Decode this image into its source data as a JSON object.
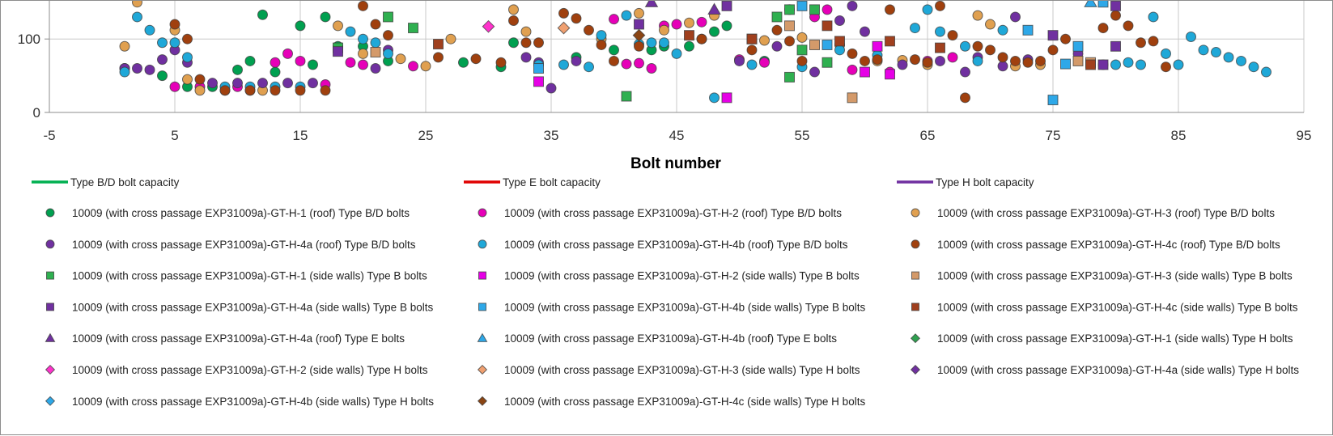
{
  "chart_data": {
    "type": "scatter",
    "title": "",
    "xlabel": "Bolt number",
    "ylabel": "",
    "xlim": [
      -5,
      95
    ],
    "x_ticks": [
      -5,
      5,
      15,
      25,
      35,
      45,
      55,
      65,
      75,
      85,
      95
    ],
    "y_ticks": [
      0,
      100
    ],
    "grid": true,
    "legend_position": "bottom",
    "lines": [
      {
        "name": "Type B/D bolt capacity",
        "color": "#00b050"
      },
      {
        "name": "Type E bolt capacity",
        "color": "#e00000"
      },
      {
        "name": "Type H bolt capacity",
        "color": "#7030a0"
      }
    ],
    "series": [
      {
        "name": "10009 (with cross passage EXP31009a)-GT-H-1 (roof) Type B/D bolts",
        "marker": "circle",
        "color": "#00a050",
        "points": [
          [
            1,
            60
          ],
          [
            4,
            50
          ],
          [
            6,
            35
          ],
          [
            8,
            35
          ],
          [
            10,
            58
          ],
          [
            11,
            70
          ],
          [
            12,
            133
          ],
          [
            13,
            55
          ],
          [
            15,
            118
          ],
          [
            16,
            65
          ],
          [
            17,
            130
          ],
          [
            18,
            90
          ],
          [
            20,
            90
          ],
          [
            22,
            70
          ],
          [
            28,
            68
          ],
          [
            31,
            62
          ],
          [
            32,
            95
          ],
          [
            37,
            75
          ],
          [
            40,
            85
          ],
          [
            43,
            85
          ],
          [
            44,
            90
          ],
          [
            46,
            90
          ],
          [
            48,
            110
          ],
          [
            49,
            118
          ],
          [
            52,
            70
          ]
        ]
      },
      {
        "name": "10009 (with cross passage EXP31009a)-GT-H-2 (roof) Type B/D bolts",
        "marker": "circle",
        "color": "#e600b8",
        "points": [
          [
            5,
            35
          ],
          [
            7,
            35
          ],
          [
            10,
            35
          ],
          [
            13,
            68
          ],
          [
            14,
            80
          ],
          [
            15,
            70
          ],
          [
            17,
            38
          ],
          [
            19,
            68
          ],
          [
            20,
            65
          ],
          [
            24,
            63
          ],
          [
            40,
            127
          ],
          [
            41,
            66
          ],
          [
            42,
            67
          ],
          [
            43,
            60
          ],
          [
            44,
            118
          ],
          [
            45,
            120
          ],
          [
            47,
            123
          ],
          [
            50,
            72
          ],
          [
            52,
            68
          ],
          [
            54,
            140
          ],
          [
            56,
            130
          ],
          [
            57,
            140
          ],
          [
            59,
            58
          ],
          [
            62,
            55
          ],
          [
            65,
            70
          ],
          [
            67,
            75
          ]
        ]
      },
      {
        "name": "10009 (with cross passage EXP31009a)-GT-H-3 (roof) Type B/D bolts",
        "marker": "circle",
        "color": "#e0a050",
        "points": [
          [
            1,
            90
          ],
          [
            2,
            150
          ],
          [
            5,
            112
          ],
          [
            6,
            45
          ],
          [
            7,
            30
          ],
          [
            9,
            30
          ],
          [
            11,
            30
          ],
          [
            12,
            30
          ],
          [
            18,
            118
          ],
          [
            20,
            80
          ],
          [
            23,
            73
          ],
          [
            25,
            63
          ],
          [
            27,
            100
          ],
          [
            32,
            140
          ],
          [
            33,
            110
          ],
          [
            39,
            100
          ],
          [
            42,
            135
          ],
          [
            44,
            112
          ],
          [
            46,
            122
          ],
          [
            48,
            132
          ],
          [
            52,
            98
          ],
          [
            55,
            102
          ],
          [
            58,
            92
          ],
          [
            61,
            70
          ],
          [
            63,
            71
          ],
          [
            65,
            65
          ],
          [
            69,
            132
          ],
          [
            70,
            120
          ],
          [
            72,
            63
          ],
          [
            74,
            65
          ]
        ]
      },
      {
        "name": "10009 (with cross passage EXP31009a)-GT-H-4a (roof) Type B/D bolts",
        "marker": "circle",
        "color": "#7030a0",
        "points": [
          [
            1,
            60
          ],
          [
            2,
            60
          ],
          [
            3,
            58
          ],
          [
            4,
            72
          ],
          [
            5,
            85
          ],
          [
            6,
            68
          ],
          [
            8,
            40
          ],
          [
            10,
            40
          ],
          [
            12,
            40
          ],
          [
            14,
            40
          ],
          [
            16,
            40
          ],
          [
            21,
            60
          ],
          [
            22,
            85
          ],
          [
            33,
            75
          ],
          [
            34,
            68
          ],
          [
            35,
            33
          ],
          [
            37,
            70
          ],
          [
            47,
            100
          ],
          [
            50,
            70
          ],
          [
            53,
            90
          ],
          [
            56,
            55
          ],
          [
            58,
            125
          ],
          [
            59,
            145
          ],
          [
            60,
            110
          ],
          [
            63,
            65
          ],
          [
            66,
            70
          ],
          [
            68,
            55
          ],
          [
            69,
            75
          ],
          [
            71,
            63
          ],
          [
            72,
            130
          ],
          [
            73,
            72
          ],
          [
            77,
            80
          ]
        ]
      },
      {
        "name": "10009 (with cross passage EXP31009a)-GT-H-4b (roof) Type B/D bolts",
        "marker": "circle",
        "color": "#1fa8d8",
        "points": [
          [
            1,
            55
          ],
          [
            2,
            130
          ],
          [
            3,
            112
          ],
          [
            4,
            95
          ],
          [
            5,
            95
          ],
          [
            6,
            75
          ],
          [
            9,
            35
          ],
          [
            11,
            35
          ],
          [
            13,
            35
          ],
          [
            15,
            35
          ],
          [
            19,
            110
          ],
          [
            20,
            100
          ],
          [
            21,
            95
          ],
          [
            22,
            80
          ],
          [
            34,
            65
          ],
          [
            36,
            65
          ],
          [
            38,
            62
          ],
          [
            39,
            105
          ],
          [
            41,
            132
          ],
          [
            42,
            93
          ],
          [
            43,
            95
          ],
          [
            44,
            95
          ],
          [
            45,
            80
          ],
          [
            48,
            20
          ],
          [
            51,
            65
          ],
          [
            55,
            62
          ],
          [
            58,
            85
          ],
          [
            61,
            78
          ],
          [
            64,
            115
          ],
          [
            65,
            140
          ],
          [
            66,
            110
          ],
          [
            68,
            90
          ],
          [
            69,
            70
          ],
          [
            71,
            112
          ],
          [
            79,
            65
          ],
          [
            80,
            65
          ],
          [
            81,
            68
          ],
          [
            82,
            65
          ],
          [
            83,
            130
          ],
          [
            84,
            80
          ],
          [
            85,
            65
          ],
          [
            86,
            103
          ],
          [
            87,
            85
          ],
          [
            88,
            82
          ],
          [
            89,
            75
          ],
          [
            90,
            70
          ],
          [
            91,
            62
          ],
          [
            92,
            55
          ]
        ]
      },
      {
        "name": "10009 (with cross passage EXP31009a)-GT-H-4c (roof) Type B/D bolts",
        "marker": "circle",
        "color": "#a0400e",
        "points": [
          [
            5,
            120
          ],
          [
            6,
            100
          ],
          [
            7,
            45
          ],
          [
            9,
            30
          ],
          [
            11,
            30
          ],
          [
            13,
            30
          ],
          [
            15,
            30
          ],
          [
            17,
            30
          ],
          [
            20,
            145
          ],
          [
            21,
            120
          ],
          [
            22,
            105
          ],
          [
            26,
            75
          ],
          [
            29,
            73
          ],
          [
            31,
            68
          ],
          [
            32,
            125
          ],
          [
            33,
            95
          ],
          [
            34,
            95
          ],
          [
            36,
            135
          ],
          [
            37,
            128
          ],
          [
            38,
            112
          ],
          [
            39,
            92
          ],
          [
            40,
            70
          ],
          [
            42,
            90
          ],
          [
            47,
            100
          ],
          [
            51,
            85
          ],
          [
            53,
            112
          ],
          [
            54,
            97
          ],
          [
            55,
            70
          ],
          [
            59,
            80
          ],
          [
            60,
            70
          ],
          [
            61,
            72
          ],
          [
            62,
            140
          ],
          [
            64,
            72
          ],
          [
            65,
            68
          ],
          [
            66,
            145
          ],
          [
            67,
            105
          ],
          [
            68,
            20
          ],
          [
            69,
            90
          ],
          [
            70,
            85
          ],
          [
            71,
            75
          ],
          [
            72,
            70
          ],
          [
            73,
            68
          ],
          [
            74,
            70
          ],
          [
            75,
            85
          ],
          [
            76,
            100
          ],
          [
            79,
            115
          ],
          [
            80,
            132
          ],
          [
            81,
            118
          ],
          [
            82,
            95
          ],
          [
            83,
            97
          ],
          [
            84,
            62
          ]
        ]
      },
      {
        "name": "10009 (with cross passage EXP31009a)-GT-H-1 (side walls) Type B bolts",
        "marker": "square",
        "color": "#2fb050",
        "points": [
          [
            18,
            88
          ],
          [
            22,
            130
          ],
          [
            24,
            115
          ],
          [
            41,
            22
          ],
          [
            53,
            130
          ],
          [
            54,
            140
          ],
          [
            54,
            48
          ],
          [
            55,
            85
          ],
          [
            56,
            140
          ],
          [
            57,
            68
          ]
        ]
      },
      {
        "name": "10009 (with cross passage EXP31009a)-GT-H-2 (side walls) Type B bolts",
        "marker": "square",
        "color": "#e600e6",
        "points": [
          [
            34,
            42
          ],
          [
            49,
            20
          ],
          [
            60,
            55
          ],
          [
            61,
            90
          ],
          [
            62,
            52
          ]
        ]
      },
      {
        "name": "10009 (with cross passage EXP31009a)-GT-H-3 (side walls) Type B bolts",
        "marker": "square",
        "color": "#d49a6a",
        "points": [
          [
            21,
            82
          ],
          [
            54,
            118
          ],
          [
            56,
            92
          ],
          [
            59,
            20
          ],
          [
            77,
            70
          ],
          [
            78,
            68
          ]
        ]
      },
      {
        "name": "10009 (with cross passage EXP31009a)-GT-H-4a (side walls) Type B bolts",
        "marker": "square",
        "color": "#7030a0",
        "points": [
          [
            18,
            83
          ],
          [
            42,
            120
          ],
          [
            49,
            145
          ],
          [
            51,
            100
          ],
          [
            75,
            105
          ],
          [
            79,
            65
          ],
          [
            80,
            90
          ],
          [
            80,
            145
          ]
        ]
      },
      {
        "name": "10009 (with cross passage EXP31009a)-GT-H-4b (side walls) Type B bolts",
        "marker": "square",
        "color": "#2ea8e8",
        "points": [
          [
            34,
            60
          ],
          [
            55,
            145
          ],
          [
            57,
            92
          ],
          [
            73,
            112
          ],
          [
            75,
            17
          ],
          [
            76,
            66
          ],
          [
            77,
            90
          ],
          [
            79,
            150
          ]
        ]
      },
      {
        "name": "10009 (with cross passage EXP31009a)-GT-H-4c (side walls) Type B bolts",
        "marker": "square",
        "color": "#a0401e",
        "points": [
          [
            26,
            93
          ],
          [
            46,
            105
          ],
          [
            51,
            100
          ],
          [
            57,
            118
          ],
          [
            58,
            97
          ],
          [
            62,
            97
          ],
          [
            66,
            88
          ],
          [
            78,
            65
          ]
        ]
      },
      {
        "name": "10009 (with cross passage EXP31009a)-GT-H-4a (roof) Type E bolts",
        "marker": "triangle",
        "color": "#7030a0",
        "points": [
          [
            43,
            150
          ],
          [
            48,
            140
          ]
        ]
      },
      {
        "name": "10009 (with cross passage EXP31009a)-GT-H-4b (roof) Type E bolts",
        "marker": "triangle",
        "color": "#2ea8e8",
        "points": [
          [
            78,
            150
          ]
        ]
      },
      {
        "name": "10009 (with cross passage EXP31009a)-GT-H-1 (side walls) Type H bolts",
        "marker": "diamond",
        "color": "#2fa050",
        "points": []
      },
      {
        "name": "10009 (with cross passage EXP31009a)-GT-H-2 (side walls) Type H bolts",
        "marker": "diamond",
        "color": "#ff33cc",
        "points": [
          [
            30,
            117
          ]
        ]
      },
      {
        "name": "10009 (with cross passage EXP31009a)-GT-H-3 (side walls) Type H bolts",
        "marker": "diamond",
        "color": "#f0a070",
        "points": [
          [
            36,
            115
          ]
        ]
      },
      {
        "name": "10009 (with cross passage EXP31009a)-GT-H-4a (side walls) Type H bolts",
        "marker": "diamond",
        "color": "#7030a0",
        "points": []
      },
      {
        "name": "10009 (with cross passage EXP31009a)-GT-H-4b (side walls) Type H bolts",
        "marker": "diamond",
        "color": "#2ea8e8",
        "points": []
      },
      {
        "name": "10009 (with cross passage EXP31009a)-GT-H-4c (side walls) Type H bolts",
        "marker": "diamond",
        "color": "#8b4513",
        "points": [
          [
            42,
            105
          ]
        ]
      }
    ]
  }
}
